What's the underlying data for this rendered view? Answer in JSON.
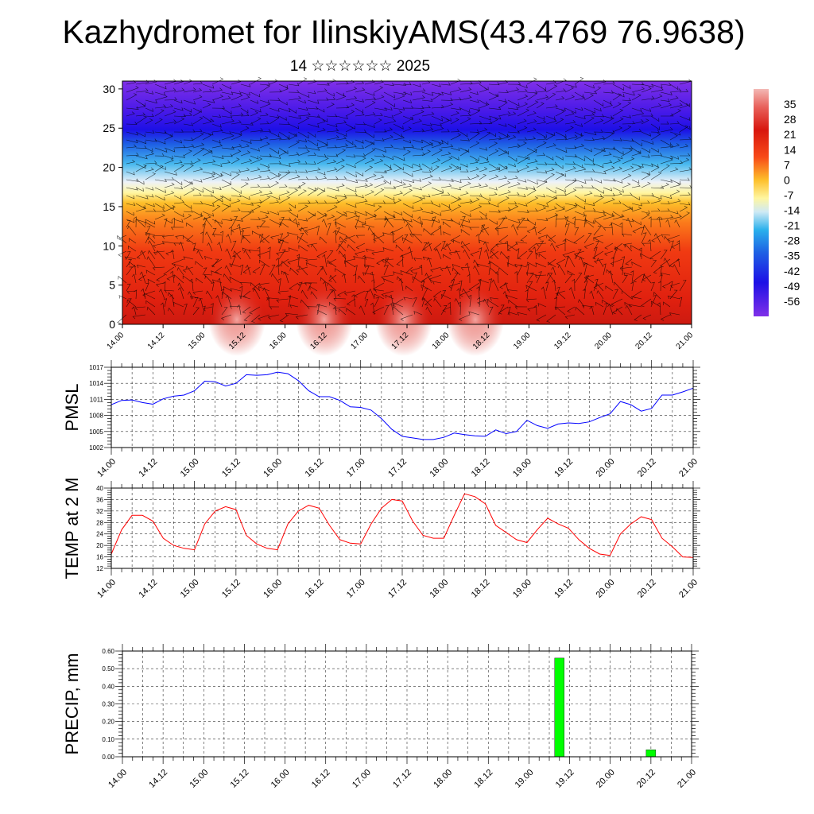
{
  "header": {
    "title": "Kazhydromet for IlinskiyAMS(43.4769 76.9638)",
    "subtitle": "14 ☆☆☆☆☆☆ 2025"
  },
  "colors": {
    "pmsl_line": "#0000ff",
    "temp_line": "#ff0000",
    "precip_bar": "#00ff00",
    "grid": "#000000"
  },
  "time_ticks": [
    "14.00",
    "14.12",
    "15.00",
    "15.12",
    "16.00",
    "16.12",
    "17.00",
    "17.12",
    "18.00",
    "18.12",
    "19.00",
    "19.12",
    "20.00",
    "20.12",
    "21.00"
  ],
  "chart_data": [
    {
      "type": "heatmap",
      "y_ticks": [
        "0",
        "5",
        "10",
        "15",
        "20",
        "25",
        "30"
      ],
      "ylim": [
        0,
        31
      ],
      "colorbar": {
        "labels": [
          "35",
          "28",
          "21",
          "14",
          "7",
          "0",
          "-7",
          "-14",
          "-21",
          "-28",
          "-35",
          "-42",
          "-49",
          "-56"
        ],
        "range": [
          -63,
          42
        ]
      },
      "vectors": "wind barbs overlay"
    },
    {
      "type": "line",
      "ylabel": "PMSL",
      "y_ticks": [
        "1002",
        "1005",
        "1008",
        "1011",
        "1014",
        "1017"
      ],
      "ylim": [
        1002,
        1017
      ],
      "x": [
        0,
        3,
        6,
        9,
        12,
        15,
        18,
        21,
        24,
        27,
        30,
        33,
        36,
        39,
        42,
        45,
        48,
        51,
        54,
        57,
        60,
        63,
        66,
        69,
        72,
        75,
        78,
        81,
        84,
        87,
        90,
        93,
        96,
        99,
        102,
        105,
        108,
        111,
        114,
        117,
        120,
        123,
        126,
        129,
        132,
        135,
        138,
        141,
        144,
        147,
        150,
        153,
        156,
        159,
        162,
        165,
        168
      ],
      "values": [
        1010.0,
        1010.8,
        1010.9,
        1010.4,
        1010.1,
        1011.1,
        1011.6,
        1011.8,
        1012.6,
        1014.4,
        1014.3,
        1013.5,
        1014.0,
        1015.6,
        1015.5,
        1015.6,
        1016.1,
        1015.8,
        1014.5,
        1012.6,
        1011.5,
        1011.5,
        1010.8,
        1009.6,
        1009.5,
        1009.0,
        1007.4,
        1005.4,
        1004.1,
        1003.8,
        1003.5,
        1003.5,
        1003.9,
        1004.7,
        1004.4,
        1004.2,
        1004.1,
        1005.3,
        1004.6,
        1005.0,
        1007.1,
        1006.1,
        1005.6,
        1006.4,
        1006.6,
        1006.5,
        1006.8,
        1007.6,
        1008.3,
        1010.6,
        1010.0,
        1008.8,
        1009.3,
        1011.8,
        1011.8,
        1012.4,
        1013.1
      ]
    },
    {
      "type": "line",
      "ylabel": "TEMP at 2 M",
      "y_ticks": [
        "12",
        "16",
        "20",
        "24",
        "28",
        "32",
        "36",
        "40"
      ],
      "ylim": [
        12,
        40
      ],
      "x": [
        0,
        3,
        6,
        9,
        12,
        15,
        18,
        21,
        24,
        27,
        30,
        33,
        36,
        39,
        42,
        45,
        48,
        51,
        54,
        57,
        60,
        63,
        66,
        69,
        72,
        75,
        78,
        81,
        84,
        87,
        90,
        93,
        96,
        99,
        102,
        105,
        108,
        111,
        114,
        117,
        120,
        123,
        126,
        129,
        132,
        135,
        138,
        141,
        144,
        147,
        150,
        153,
        156,
        159,
        162,
        165,
        168
      ],
      "values": [
        17.0,
        25.5,
        30.5,
        30.5,
        28.5,
        22.5,
        20.0,
        19.0,
        18.5,
        27.5,
        32.0,
        33.5,
        32.5,
        23.5,
        20.5,
        19.0,
        18.5,
        27.5,
        32.0,
        34.0,
        33.0,
        27.0,
        22.0,
        20.8,
        20.5,
        27.5,
        33.0,
        36.0,
        35.5,
        28.5,
        23.5,
        22.5,
        22.5,
        30.5,
        38.0,
        37.0,
        34.5,
        27.0,
        24.5,
        22.0,
        21.0,
        25.5,
        29.5,
        27.5,
        26.0,
        22.0,
        19.0,
        17.0,
        16.5,
        24.0,
        27.5,
        30.0,
        29.0,
        22.5,
        19.5,
        16.0,
        15.8
      ]
    },
    {
      "type": "bar",
      "ylabel": "PRECIP, mm",
      "y_ticks": [
        "0.00",
        "0.10",
        "0.20",
        "0.30",
        "0.40",
        "0.50",
        "0.60"
      ],
      "ylim": [
        0,
        0.6
      ],
      "x_hours": [
        129,
        156
      ],
      "values": [
        0.56,
        0.04
      ]
    }
  ]
}
